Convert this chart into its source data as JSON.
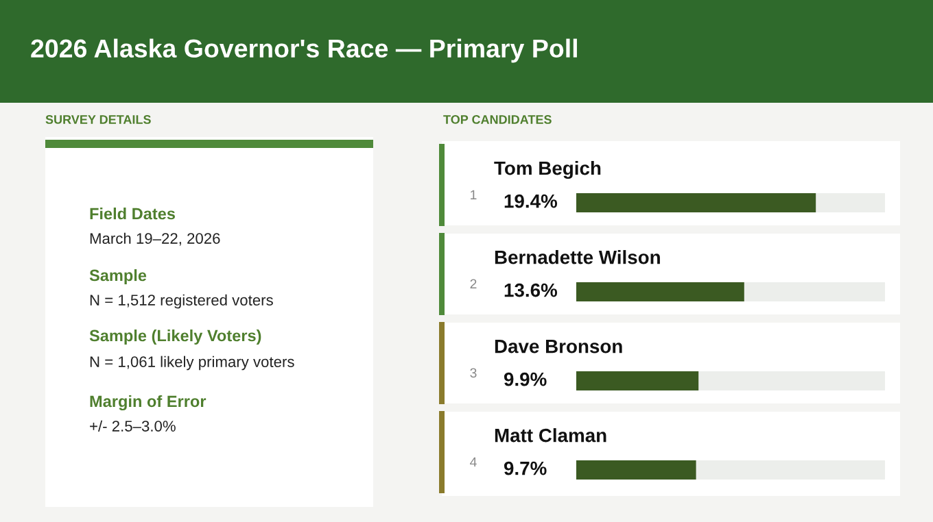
{
  "chart_data": {
    "type": "bar",
    "orientation": "horizontal",
    "title": "2026 Alaska Governor's Race — Primary Poll",
    "categories": [
      "Tom Begich",
      "Bernadette Wilson",
      "Dave Bronson",
      "Matt Claman"
    ],
    "values": [
      19.4,
      13.6,
      9.9,
      9.7
    ],
    "value_labels": [
      "19.4%",
      "13.6%",
      "9.9%",
      "9.7%"
    ],
    "color": "#3b5a22",
    "xlim": [
      0,
      25
    ],
    "annotations": [
      "SURVEY DETAILS",
      "TOP CANDIDATES",
      "Field Dates",
      "March 19–22, 2026",
      "Sample",
      "N = 1,512 registered voters",
      "Sample (Likely Voters)",
      "N = 1,061 likely primary voters",
      "Margin of Error",
      "+/- 2.5–3.0%",
      "1",
      "2",
      "3",
      "4"
    ]
  }
}
